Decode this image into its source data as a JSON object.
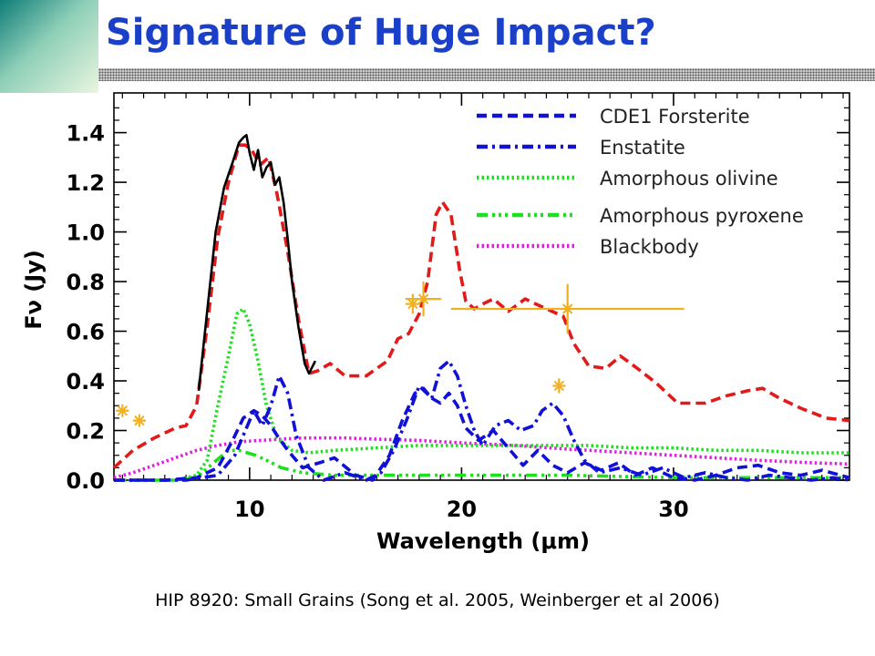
{
  "slide": {
    "title": "Signature of Huge Impact?",
    "caption": "HIP 8920: Small Grains (Song et al. 2005, Weinberger et al 2006)"
  },
  "colors": {
    "title": "#1a3fc9",
    "observed": "#000000",
    "total_model": "#e21a1a",
    "forsterite": "#1010d8",
    "enstatite": "#1010d8",
    "amorphous_olivine": "#1ee01e",
    "amorphous_pyroxene": "#1ee01e",
    "blackbody": "#e020e0",
    "photometry": "#f0b020"
  },
  "chart_data": {
    "type": "line",
    "title": "",
    "xlabel": "Wavelength (μm)",
    "ylabel": "Fν (Jy)",
    "xlim": [
      3.6,
      38.3
    ],
    "ylim": [
      0.0,
      1.56
    ],
    "x_ticks": [
      10,
      20,
      30
    ],
    "x_tick_labels": [
      "10",
      "20",
      "30"
    ],
    "y_ticks": [
      0.0,
      0.2,
      0.4,
      0.6,
      0.8,
      1.0,
      1.2,
      1.4
    ],
    "y_tick_labels": [
      "0.0",
      "0.2",
      "0.4",
      "0.6",
      "0.8",
      "1.0",
      "1.2",
      "1.4"
    ],
    "grid": false,
    "legend_position": "top-right",
    "series": [
      {
        "id": "observed",
        "style": "solid",
        "color": "#000000",
        "x": [
          7.6,
          8.0,
          8.4,
          8.8,
          9.2,
          9.5,
          9.7,
          9.85,
          10.0,
          10.2,
          10.4,
          10.6,
          10.8,
          11.0,
          11.2,
          11.4,
          11.6,
          11.8,
          12.0,
          12.3,
          12.6,
          12.8,
          13.1
        ],
        "y": [
          0.36,
          0.68,
          1.0,
          1.18,
          1.28,
          1.36,
          1.38,
          1.39,
          1.32,
          1.25,
          1.33,
          1.22,
          1.26,
          1.28,
          1.19,
          1.22,
          1.12,
          0.97,
          0.8,
          0.62,
          0.47,
          0.43,
          0.48
        ]
      },
      {
        "id": "total_model",
        "style": "dashed",
        "color": "#e21a1a",
        "x": [
          3.6,
          4.5,
          5.5,
          6.5,
          7.0,
          7.5,
          8.0,
          8.5,
          9.0,
          9.5,
          9.8,
          10.1,
          10.5,
          10.9,
          11.3,
          11.8,
          12.3,
          12.8,
          13.2,
          13.8,
          14.5,
          15.5,
          16.5,
          17.0,
          17.5,
          18.0,
          18.4,
          18.8,
          19.1,
          19.5,
          19.9,
          20.2,
          20.6,
          21.0,
          21.5,
          22.2,
          23.0,
          24.0,
          24.8,
          25.3,
          26.0,
          26.8,
          27.5,
          28.3,
          29.2,
          30.2,
          31.5,
          32.5,
          33.5,
          34.2,
          35.0,
          36.0,
          37.2,
          38.3
        ],
        "y": [
          0.05,
          0.12,
          0.17,
          0.21,
          0.22,
          0.3,
          0.62,
          0.98,
          1.2,
          1.35,
          1.35,
          1.33,
          1.27,
          1.3,
          1.15,
          0.92,
          0.65,
          0.43,
          0.44,
          0.47,
          0.42,
          0.42,
          0.48,
          0.57,
          0.59,
          0.67,
          0.8,
          1.07,
          1.12,
          1.07,
          0.85,
          0.72,
          0.69,
          0.71,
          0.73,
          0.68,
          0.73,
          0.69,
          0.66,
          0.55,
          0.46,
          0.45,
          0.5,
          0.45,
          0.39,
          0.31,
          0.31,
          0.34,
          0.36,
          0.37,
          0.33,
          0.29,
          0.25,
          0.24
        ]
      },
      {
        "id": "forsterite",
        "style": "dashed",
        "color": "#1010d8",
        "x": [
          3.6,
          6.0,
          7.5,
          8.5,
          9.2,
          9.7,
          10.2,
          10.6,
          11.0,
          11.3,
          11.8,
          12.5,
          13.3,
          14.0,
          15.0,
          15.8,
          16.6,
          17.2,
          17.8,
          18.2,
          18.6,
          19.0,
          19.4,
          19.8,
          20.2,
          20.8,
          21.5,
          22.2,
          22.9,
          23.6,
          24.3,
          25.0,
          25.8,
          26.6,
          27.4,
          28.2,
          29.0,
          30.0,
          31.0,
          32.0,
          33.0,
          34.0,
          35.0,
          36.0,
          37.0,
          38.3
        ],
        "y": [
          0.0,
          0.0,
          0.01,
          0.05,
          0.16,
          0.25,
          0.28,
          0.26,
          0.22,
          0.18,
          0.12,
          0.05,
          0.07,
          0.09,
          0.02,
          0.0,
          0.1,
          0.24,
          0.35,
          0.37,
          0.33,
          0.31,
          0.35,
          0.3,
          0.21,
          0.16,
          0.2,
          0.13,
          0.06,
          0.12,
          0.06,
          0.03,
          0.07,
          0.04,
          0.07,
          0.02,
          0.05,
          0.01,
          0.0,
          0.02,
          0.05,
          0.06,
          0.03,
          0.02,
          0.04,
          0.01
        ]
      },
      {
        "id": "enstatite",
        "style": "dashdot",
        "color": "#1010d8",
        "x": [
          3.6,
          7.0,
          8.5,
          9.3,
          9.8,
          10.2,
          10.6,
          11.0,
          11.4,
          11.8,
          12.2,
          12.8,
          13.5,
          14.5,
          15.5,
          16.2,
          16.8,
          17.4,
          18.0,
          18.6,
          19.0,
          19.4,
          19.8,
          20.2,
          20.6,
          21.0,
          21.6,
          22.2,
          22.8,
          23.4,
          23.8,
          24.3,
          24.8,
          25.3,
          25.8,
          26.5,
          27.5,
          28.5,
          29.5,
          30.5,
          31.5,
          32.5,
          33.5,
          34.5,
          35.5,
          36.5,
          37.5,
          38.3
        ],
        "y": [
          0.0,
          0.0,
          0.02,
          0.1,
          0.2,
          0.28,
          0.22,
          0.3,
          0.42,
          0.35,
          0.18,
          0.05,
          0.0,
          0.03,
          0.0,
          0.03,
          0.12,
          0.24,
          0.38,
          0.33,
          0.45,
          0.48,
          0.42,
          0.3,
          0.2,
          0.14,
          0.22,
          0.24,
          0.2,
          0.22,
          0.28,
          0.31,
          0.26,
          0.16,
          0.08,
          0.03,
          0.05,
          0.02,
          0.05,
          0.01,
          0.03,
          0.01,
          0.0,
          0.02,
          0.01,
          0.0,
          0.01,
          0.0
        ]
      },
      {
        "id": "amorphous_olivine",
        "style": "dotted",
        "color": "#1ee01e",
        "x": [
          3.6,
          6.5,
          7.5,
          8.0,
          8.5,
          9.0,
          9.4,
          9.7,
          10.0,
          10.4,
          10.8,
          11.3,
          12.0,
          12.8,
          14.0,
          16.0,
          18.0,
          20.0,
          22.0,
          24.0,
          26.0,
          28.0,
          30.0,
          32.0,
          34.0,
          36.0,
          38.3
        ],
        "y": [
          0.0,
          0.0,
          0.02,
          0.08,
          0.3,
          0.5,
          0.67,
          0.69,
          0.63,
          0.48,
          0.3,
          0.17,
          0.12,
          0.11,
          0.12,
          0.13,
          0.14,
          0.14,
          0.14,
          0.14,
          0.14,
          0.13,
          0.13,
          0.12,
          0.12,
          0.11,
          0.11
        ]
      },
      {
        "id": "amorphous_pyroxene",
        "style": "dashdotdotdot",
        "color": "#1ee01e",
        "x": [
          3.6,
          6.5,
          7.5,
          8.3,
          9.0,
          9.5,
          9.9,
          10.3,
          10.8,
          11.5,
          12.5,
          14.0,
          16.0,
          20.0,
          25.0,
          30.0,
          35.0,
          38.3
        ],
        "y": [
          0.0,
          0.0,
          0.01,
          0.07,
          0.12,
          0.12,
          0.11,
          0.1,
          0.08,
          0.05,
          0.03,
          0.02,
          0.02,
          0.02,
          0.02,
          0.01,
          0.01,
          0.01
        ]
      },
      {
        "id": "blackbody",
        "style": "dotted",
        "color": "#e020e0",
        "x": [
          3.6,
          4.5,
          5.5,
          6.5,
          7.5,
          8.5,
          9.5,
          10.5,
          11.5,
          12.5,
          13.5,
          14.5,
          16.0,
          18.0,
          20.0,
          22.5,
          25.0,
          28.0,
          31.0,
          34.0,
          36.5,
          38.3
        ],
        "y": [
          0.01,
          0.03,
          0.06,
          0.09,
          0.12,
          0.14,
          0.155,
          0.16,
          0.165,
          0.17,
          0.17,
          0.17,
          0.165,
          0.16,
          0.15,
          0.14,
          0.125,
          0.11,
          0.095,
          0.08,
          0.07,
          0.065
        ]
      }
    ],
    "photometry": [
      {
        "x": 4.0,
        "y": 0.28,
        "xerr": 0.3,
        "yerr": 0.0
      },
      {
        "x": 4.8,
        "y": 0.24,
        "xerr": 0.3,
        "yerr": 0.0
      },
      {
        "x": 17.7,
        "y": 0.71,
        "xerr": 0.35,
        "yerr": 0.04
      },
      {
        "x": 18.2,
        "y": 0.73,
        "xerr": 0.85,
        "yerr": 0.07
      },
      {
        "x": 24.6,
        "y": 0.38,
        "xerr": 0.3,
        "yerr": 0.03
      },
      {
        "x": 25.0,
        "y": 0.69,
        "xerr": 5.5,
        "yerr": 0.1
      }
    ],
    "legend": [
      {
        "label": "CDE1 Forsterite",
        "series": "forsterite"
      },
      {
        "label": "Enstatite",
        "series": "enstatite"
      },
      {
        "label": "Amorphous olivine",
        "series": "amorphous_olivine"
      },
      {
        "label": "Amorphous pyroxene",
        "series": "amorphous_pyroxene"
      },
      {
        "label": "Blackbody",
        "series": "blackbody"
      }
    ]
  }
}
